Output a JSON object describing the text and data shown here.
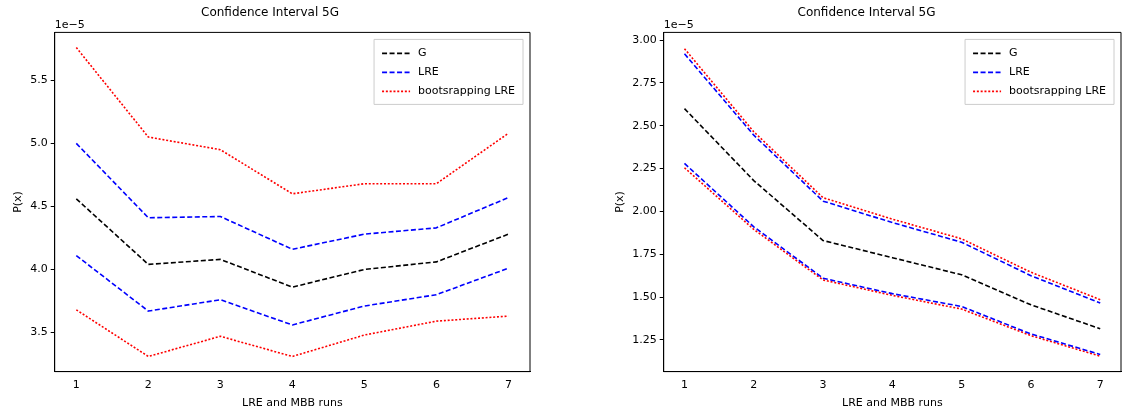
{
  "chart_data": [
    {
      "type": "line",
      "title": "Confidence Interval 5G",
      "xlabel": "LRE and MBB runs",
      "ylabel": "P(x)",
      "annotations": [
        "1e−5"
      ],
      "legend": "top right",
      "marker": "none",
      "x": [
        1,
        2,
        3,
        4,
        5,
        6,
        7
      ],
      "xlim": [
        0.7,
        7.3
      ],
      "xticks": [
        1,
        2,
        3,
        4,
        5,
        6,
        7
      ],
      "ylim": [
        3.19,
        5.88
      ],
      "yticks": [
        {
          "value": 3.5,
          "label": "3.5"
        },
        {
          "value": 4,
          "label": "4.0"
        },
        {
          "value": 4.5,
          "label": "4.5"
        },
        {
          "value": 5,
          "label": "5.0"
        },
        {
          "value": 5.5,
          "label": "5.5"
        }
      ],
      "series": [
        {
          "name": "G",
          "color": "#000000",
          "line_style": "dashed",
          "values": [
            4.56,
            4.04,
            4.08,
            3.86,
            4.0,
            4.06,
            4.28
          ]
        },
        {
          "name": "LRE",
          "color": "#0000ff",
          "line_style": "dashed",
          "values": [
            5.0,
            4.41,
            4.42,
            4.16,
            4.28,
            4.33,
            4.57
          ]
        },
        {
          "color": "#0000ff",
          "line_style": "dashed",
          "values": [
            4.11,
            3.67,
            3.76,
            3.56,
            3.71,
            3.8,
            4.01
          ]
        },
        {
          "name": "bootsrapping LRE",
          "color": "#ff0000",
          "line_style": "dotted",
          "values": [
            5.76,
            5.05,
            4.95,
            4.6,
            4.68,
            4.68,
            5.08
          ]
        },
        {
          "color": "#ff0000",
          "line_style": "dotted",
          "values": [
            3.68,
            3.31,
            3.47,
            3.31,
            3.48,
            3.59,
            3.63
          ]
        }
      ]
    },
    {
      "type": "line",
      "title": "Confidence Interval 5G",
      "xlabel": "LRE and MBB runs",
      "ylabel": "P(x)",
      "annotations": [
        "1e−5"
      ],
      "legend": "top right",
      "marker": "none",
      "x": [
        1,
        2,
        3,
        4,
        5,
        6,
        7
      ],
      "xlim": [
        0.7,
        7.3
      ],
      "xticks": [
        1,
        2,
        3,
        4,
        5,
        6,
        7
      ],
      "ylim": [
        1.065,
        3.045
      ],
      "yticks": [
        {
          "value": 1.25,
          "label": "1.25"
        },
        {
          "value": 1.5,
          "label": "1.50"
        },
        {
          "value": 1.75,
          "label": "1.75"
        },
        {
          "value": 2,
          "label": "2.00"
        },
        {
          "value": 2.25,
          "label": "2.25"
        },
        {
          "value": 2.5,
          "label": "2.50"
        },
        {
          "value": 2.75,
          "label": "2.75"
        },
        {
          "value": 3,
          "label": "3.00"
        }
      ],
      "series": [
        {
          "name": "G",
          "color": "#000000",
          "line_style": "dashed",
          "values": [
            2.6,
            2.18,
            1.83,
            1.73,
            1.63,
            1.455,
            1.315
          ]
        },
        {
          "name": "LRE",
          "color": "#0000ff",
          "line_style": "dashed",
          "values": [
            2.92,
            2.445,
            2.06,
            1.935,
            1.82,
            1.625,
            1.465
          ]
        },
        {
          "color": "#0000ff",
          "line_style": "dashed",
          "values": [
            2.28,
            1.91,
            1.61,
            1.52,
            1.445,
            1.285,
            1.165
          ]
        },
        {
          "name": "bootsrapping LRE",
          "color": "#ff0000",
          "line_style": "dotted",
          "values": [
            2.95,
            2.465,
            2.08,
            1.955,
            1.84,
            1.645,
            1.485
          ]
        },
        {
          "color": "#ff0000",
          "line_style": "dotted",
          "values": [
            2.255,
            1.895,
            1.6,
            1.51,
            1.43,
            1.275,
            1.155
          ]
        }
      ]
    }
  ]
}
